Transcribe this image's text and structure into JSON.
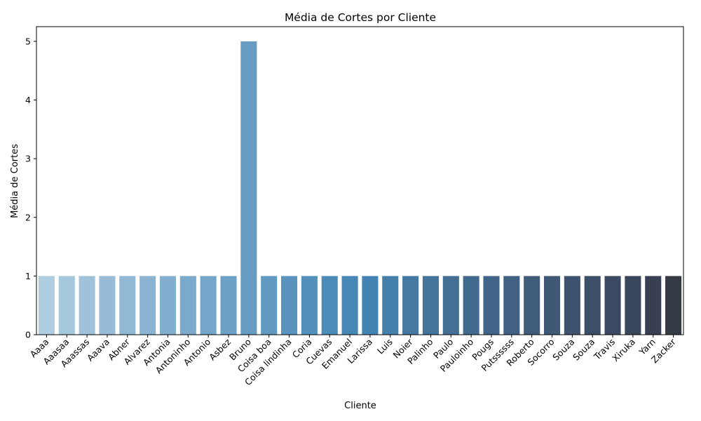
{
  "chart_data": {
    "type": "bar",
    "title": "Média de Cortes por Cliente",
    "xlabel": "Cliente",
    "ylabel": "Média de Cortes",
    "categories": [
      "Aaaa",
      "Aaasaa",
      "Aaassas",
      "Aaava",
      "Abner",
      "Alvarez",
      "Antonia",
      "Antoninho",
      "Antonio",
      "Asbez",
      "Bruno",
      "Coisa boa",
      "Coisa lindinha",
      "Coria",
      "Cuevas",
      "Emanuel",
      "Larissa",
      "Luis",
      "Noier",
      "Palinho",
      "Paulo",
      "Pauloinho",
      "Pougs",
      "Putssssss",
      "Roberto",
      "Socorro",
      "Souza",
      "Souza",
      "Travis",
      "Xiruka",
      "Yarn",
      "Zacker"
    ],
    "values": [
      1,
      1,
      1,
      1,
      1,
      1,
      1,
      1,
      1,
      1,
      5,
      1,
      1,
      1,
      1,
      1,
      1,
      1,
      1,
      1,
      1,
      1,
      1,
      1,
      1,
      1,
      1,
      1,
      1,
      1,
      1,
      1
    ],
    "ylim": [
      0,
      5.25
    ],
    "yticks": [
      0,
      1,
      2,
      3,
      4,
      5
    ],
    "grid": false,
    "palette": "Blues_d",
    "colors": [
      "#afcde1",
      "#a6c8dd",
      "#9fc2da",
      "#98bcd7",
      "#91b8d5",
      "#8ab4d2",
      "#83afcf",
      "#7caacc",
      "#75a6c9",
      "#6ea1c6",
      "#679dc3",
      "#6199c1",
      "#5a94be",
      "#5390bb",
      "#4c8cb9",
      "#4687b6",
      "#4484b2",
      "#4580ab",
      "#4679a2",
      "#45749b",
      "#436f95",
      "#426a8e",
      "#416588",
      "#406181",
      "#3f5c7b",
      "#3e5875",
      "#3d536f",
      "#3c4f68",
      "#3b4a62",
      "#3a465b",
      "#383f53",
      "#353b45"
    ]
  }
}
